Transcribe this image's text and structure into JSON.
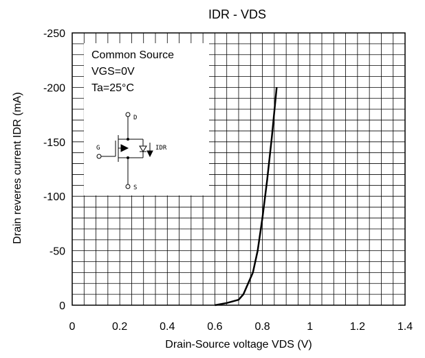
{
  "chart_data": {
    "type": "line",
    "title": "IDR - VDS",
    "xlabel": "Drain-Source voltage VDS (V)",
    "ylabel": "Drain reveres current IDR (mA)",
    "xlim": [
      0,
      1.4
    ],
    "ylim": [
      0,
      -250
    ],
    "x_ticks": [
      "0",
      "0.2",
      "0.4",
      "0.6",
      "0.8",
      "1",
      "1.2",
      "1.4"
    ],
    "y_ticks": [
      "0",
      "-50",
      "-100",
      "-150",
      "-200",
      "-250"
    ],
    "grid": true,
    "annotation": [
      "Common Source",
      "VGS=0V",
      "Ta=25°C"
    ],
    "schematic_labels": {
      "drain": "D",
      "gate": "G",
      "source": "S",
      "current": "IDR"
    },
    "series": [
      {
        "x": [
          0.6,
          0.65,
          0.7,
          0.72,
          0.74,
          0.76,
          0.78,
          0.8,
          0.82,
          0.84,
          0.86
        ],
        "y": [
          0,
          -2,
          -5,
          -10,
          -20,
          -30,
          -50,
          -80,
          -115,
          -155,
          -200
        ]
      }
    ]
  }
}
